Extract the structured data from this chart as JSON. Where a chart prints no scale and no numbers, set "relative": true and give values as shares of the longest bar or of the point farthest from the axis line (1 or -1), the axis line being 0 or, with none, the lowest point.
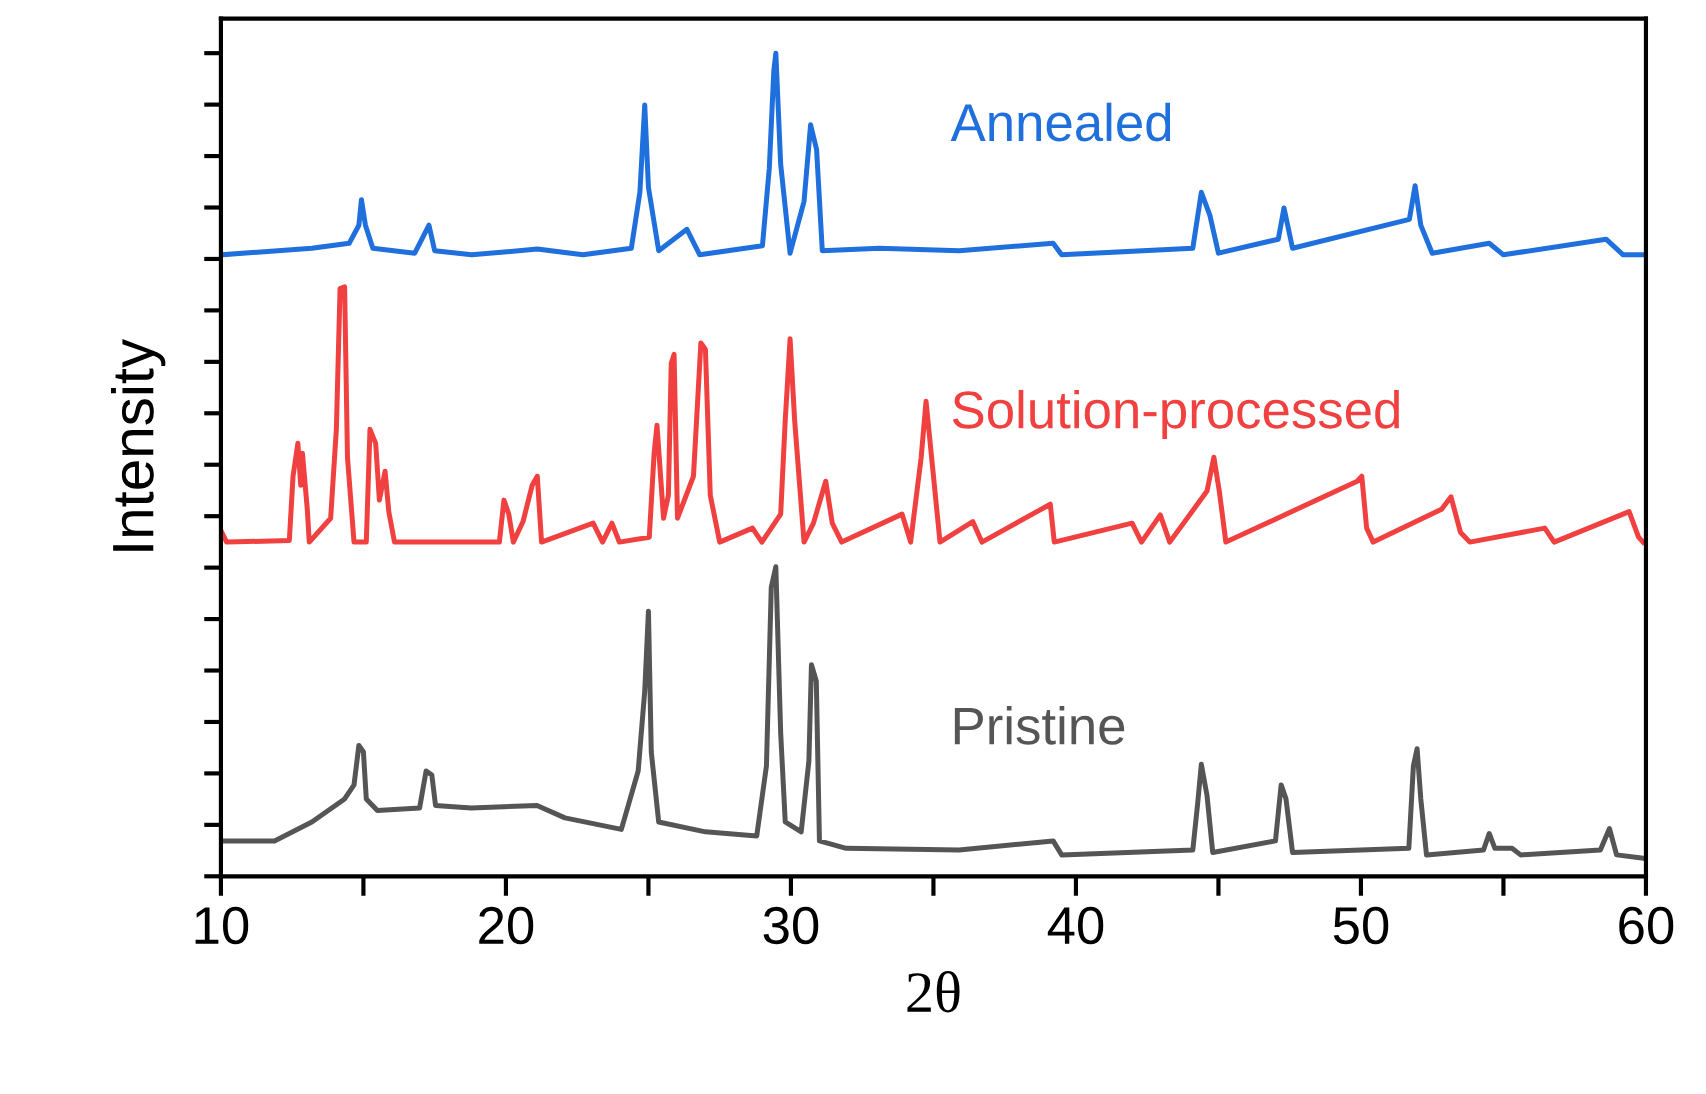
{
  "chart_data": {
    "type": "line",
    "relative": true,
    "xlabel": "2θ",
    "ylabel": "Intensity",
    "xlim": [
      10,
      60
    ],
    "xticks": [
      10,
      {
        "value": 15,
        "label": null
      },
      20,
      {
        "value": 25,
        "label": null
      },
      30,
      {
        "value": 35,
        "label": null
      },
      40,
      {
        "value": 45,
        "label": null
      },
      50,
      {
        "value": 55,
        "label": null
      },
      60
    ],
    "tick_labels": "x",
    "grid": false,
    "legend": false,
    "series": [
      {
        "name": "Annealed",
        "color": "#1f6fdc",
        "x": [
          10.0,
          13.19,
          14.5,
          14.84,
          14.93,
          15.07,
          15.33,
          16.8,
          17.3,
          17.5,
          18.8,
          21.1,
          22.7,
          24.4,
          24.7,
          24.87,
          25.0,
          25.36,
          26.35,
          26.8,
          29.0,
          29.24,
          29.4,
          29.47,
          29.64,
          29.97,
          30.46,
          30.69,
          30.9,
          31.1,
          33.1,
          35.9,
          39.2,
          39.5,
          44.1,
          44.4,
          44.7,
          45.0,
          47.1,
          47.3,
          47.6,
          51.7,
          51.9,
          52.1,
          52.5,
          54.5,
          55.0,
          58.6,
          59.2,
          59.9
        ],
        "values": [
          0.755,
          0.763,
          0.769,
          0.791,
          0.822,
          0.791,
          0.763,
          0.757,
          0.791,
          0.76,
          0.755,
          0.762,
          0.755,
          0.763,
          0.831,
          0.937,
          0.837,
          0.76,
          0.786,
          0.755,
          0.766,
          0.86,
          0.979,
          1.0,
          0.865,
          0.757,
          0.82,
          0.913,
          0.883,
          0.76,
          0.763,
          0.76,
          0.769,
          0.755,
          0.763,
          0.831,
          0.803,
          0.757,
          0.774,
          0.812,
          0.763,
          0.798,
          0.839,
          0.791,
          0.757,
          0.769,
          0.755,
          0.774,
          0.755,
          0.755
        ]
      },
      {
        "name": "Solution-processed",
        "color": "#f04040",
        "x": [
          10.0,
          10.2,
          12.4,
          12.53,
          12.7,
          12.8,
          12.86,
          13.03,
          13.1,
          13.85,
          14.05,
          14.18,
          14.34,
          14.44,
          14.67,
          15.1,
          15.23,
          15.43,
          15.56,
          15.76,
          15.89,
          16.09,
          19.77,
          19.93,
          20.1,
          20.26,
          20.6,
          20.92,
          21.1,
          21.25,
          23.06,
          23.39,
          23.72,
          23.98,
          25.03,
          25.2,
          25.3,
          25.53,
          25.7,
          25.8,
          25.9,
          26.02,
          26.58,
          26.84,
          27.0,
          27.17,
          27.5,
          28.65,
          28.98,
          29.64,
          29.8,
          29.97,
          30.13,
          30.46,
          30.79,
          31.22,
          31.45,
          31.78,
          33.9,
          34.2,
          34.57,
          34.74,
          34.97,
          35.23,
          36.38,
          36.7,
          39.1,
          39.24,
          41.97,
          42.3,
          42.96,
          43.29,
          44.6,
          44.84,
          45.03,
          45.26,
          49.87,
          50.03,
          50.2,
          50.43,
          52.83,
          53.16,
          53.49,
          53.82,
          56.45,
          56.78,
          59.41,
          59.74,
          59.9
        ],
        "values": [
          0.42,
          0.406,
          0.408,
          0.486,
          0.526,
          0.475,
          0.514,
          0.446,
          0.406,
          0.435,
          0.543,
          0.714,
          0.716,
          0.509,
          0.406,
          0.406,
          0.543,
          0.526,
          0.457,
          0.492,
          0.443,
          0.406,
          0.406,
          0.457,
          0.44,
          0.406,
          0.431,
          0.475,
          0.486,
          0.406,
          0.429,
          0.406,
          0.429,
          0.406,
          0.412,
          0.514,
          0.548,
          0.435,
          0.463,
          0.623,
          0.634,
          0.435,
          0.486,
          0.648,
          0.64,
          0.463,
          0.406,
          0.423,
          0.406,
          0.44,
          0.554,
          0.653,
          0.554,
          0.406,
          0.429,
          0.48,
          0.429,
          0.406,
          0.44,
          0.406,
          0.509,
          0.577,
          0.497,
          0.406,
          0.431,
          0.406,
          0.452,
          0.406,
          0.429,
          0.406,
          0.439,
          0.406,
          0.468,
          0.509,
          0.468,
          0.406,
          0.48,
          0.486,
          0.423,
          0.406,
          0.446,
          0.461,
          0.418,
          0.406,
          0.423,
          0.406,
          0.443,
          0.412,
          0.406
        ]
      },
      {
        "name": "Pristine",
        "color": "#555555",
        "x": [
          10.0,
          11.88,
          13.19,
          14.34,
          14.67,
          14.84,
          15.0,
          15.1,
          15.49,
          16.97,
          17.2,
          17.4,
          17.53,
          18.78,
          21.09,
          22.07,
          24.05,
          24.64,
          24.87,
          25.0,
          25.1,
          25.36,
          27.0,
          28.8,
          29.14,
          29.31,
          29.47,
          29.64,
          29.8,
          30.36,
          30.63,
          30.72,
          30.89,
          31.0,
          31.94,
          35.9,
          39.2,
          39.5,
          44.1,
          44.27,
          44.4,
          44.6,
          44.8,
          47.0,
          47.2,
          47.37,
          47.6,
          51.68,
          51.84,
          51.97,
          52.1,
          52.3,
          54.3,
          54.5,
          54.7,
          55.3,
          55.6,
          58.4,
          58.72,
          58.97,
          59.9
        ],
        "values": [
          0.043,
          0.043,
          0.066,
          0.094,
          0.111,
          0.159,
          0.151,
          0.094,
          0.08,
          0.083,
          0.128,
          0.123,
          0.086,
          0.083,
          0.086,
          0.071,
          0.057,
          0.128,
          0.225,
          0.322,
          0.151,
          0.066,
          0.054,
          0.049,
          0.134,
          0.351,
          0.376,
          0.174,
          0.066,
          0.054,
          0.14,
          0.257,
          0.237,
          0.043,
          0.034,
          0.032,
          0.043,
          0.026,
          0.032,
          0.088,
          0.136,
          0.098,
          0.029,
          0.043,
          0.111,
          0.094,
          0.029,
          0.034,
          0.134,
          0.155,
          0.094,
          0.026,
          0.032,
          0.052,
          0.034,
          0.034,
          0.026,
          0.032,
          0.058,
          0.026,
          0.022
        ]
      }
    ]
  }
}
